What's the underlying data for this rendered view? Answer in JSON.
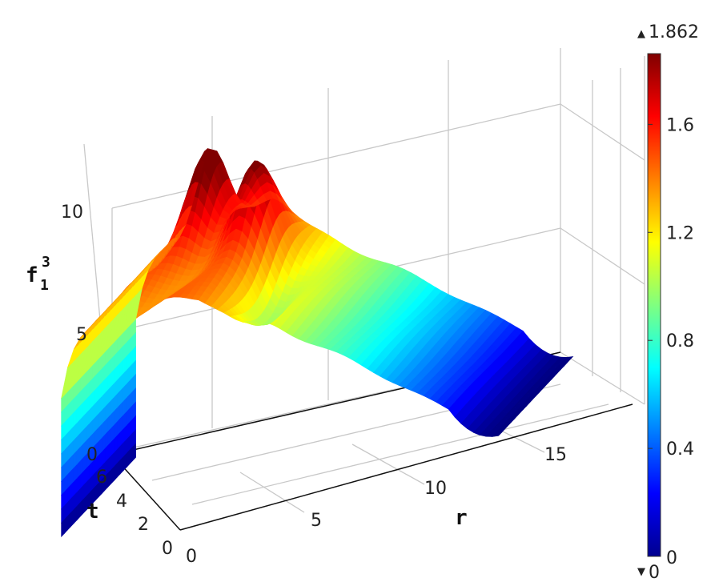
{
  "chart_data": {
    "type": "surface",
    "title": "",
    "xlabel": "r",
    "ylabel": "t",
    "zlabel": "f",
    "zlabel_subscript": "1",
    "zlabel_superscript": "3",
    "x_ticks": [
      "0",
      "5",
      "10",
      "15"
    ],
    "y_ticks": [
      "0",
      "2",
      "4",
      "6"
    ],
    "z_ticks": [
      "0",
      "5",
      "10"
    ],
    "xlim": [
      0,
      18
    ],
    "ylim": [
      0,
      6
    ],
    "zlim": [
      0,
      12
    ],
    "colorbar": {
      "colormap": "jet",
      "min": 0,
      "max": 1.862,
      "max_label": "1.862",
      "min_label": "0",
      "ticks": [
        "0",
        "0.4",
        "0.8",
        "1.2",
        "1.6"
      ],
      "tick_values": [
        0,
        0.4,
        0.8,
        1.2,
        1.6
      ],
      "max_marker": "▲",
      "min_marker": "▼"
    },
    "surface": {
      "t_range": [
        0,
        6
      ],
      "r_range": [
        0.5,
        18
      ],
      "description_values": {
        "plateau_height_at_small_r": 8.5,
        "peak_1": {
          "r": 3.5,
          "t": 0.3,
          "value": 11.0
        },
        "peak_2": {
          "r": 6.0,
          "t": 1.5,
          "value": 9.5
        },
        "value_at_r_18": 0.0
      }
    },
    "grid": true
  }
}
